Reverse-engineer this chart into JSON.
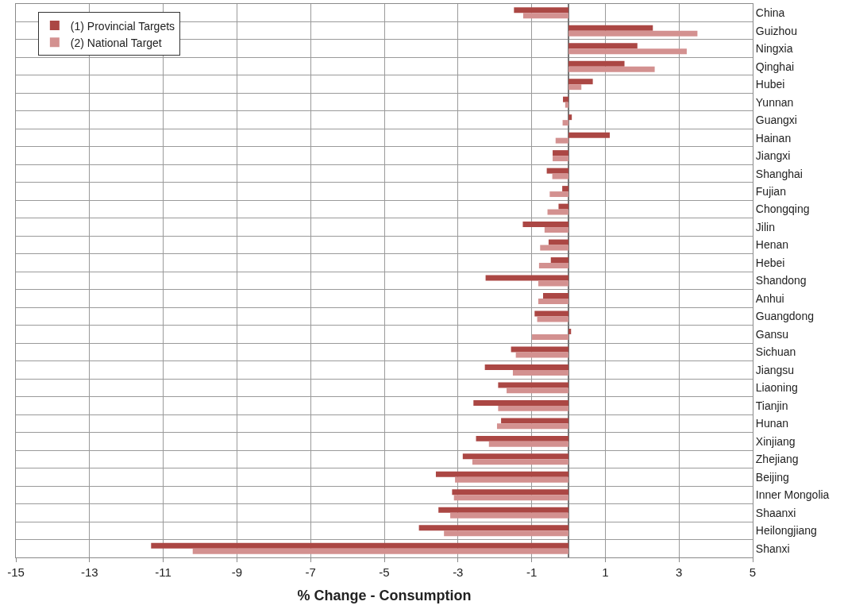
{
  "chart_data": {
    "type": "bar",
    "orientation": "horizontal",
    "xlabel": "% Change - Consumption",
    "categories": [
      "China",
      "Guizhou",
      "Ningxia",
      "Qinghai",
      "Hubei",
      "Yunnan",
      "Guangxi",
      "Hainan",
      "Jiangxi",
      "Shanghai",
      "Fujian",
      "Chongqing",
      "Jilin",
      "Henan",
      "Hebei",
      "Shandong",
      "Anhui",
      "Guangdong",
      "Gansu",
      "Sichuan",
      "Jiangsu",
      "Liaoning",
      "Tianjin",
      "Hunan",
      "Xinjiang",
      "Zhejiang",
      "Beijing",
      "Inner Mongolia",
      "Shaanxi",
      "Heilongjiang",
      "Shanxi"
    ],
    "series": [
      {
        "name": "(1) Provincial Targets",
        "color": "#ab4744",
        "values": [
          -1.48,
          2.29,
          1.87,
          1.52,
          0.66,
          -0.15,
          0.09,
          1.12,
          -0.43,
          -0.59,
          -0.17,
          -0.27,
          -1.24,
          -0.54,
          -0.48,
          -2.25,
          -0.69,
          -0.92,
          0.07,
          -1.56,
          -2.27,
          -1.91,
          -2.58,
          -1.83,
          -2.51,
          -2.87,
          -3.6,
          -3.16,
          -3.53,
          -4.06,
          -11.33
        ]
      },
      {
        "name": "(2) National Target",
        "color": "#d39190",
        "values": [
          -1.23,
          3.5,
          3.21,
          2.34,
          0.35,
          -0.09,
          -0.16,
          -0.35,
          -0.43,
          -0.44,
          -0.51,
          -0.57,
          -0.65,
          -0.77,
          -0.8,
          -0.82,
          -0.82,
          -0.85,
          -0.99,
          -1.43,
          -1.51,
          -1.68,
          -1.91,
          -1.94,
          -2.16,
          -2.61,
          -3.08,
          -3.11,
          -3.21,
          -3.38,
          -10.2
        ]
      }
    ],
    "xlim": [
      -15,
      5
    ],
    "xticks": [
      -15,
      -13,
      -11,
      -9,
      -7,
      -5,
      -3,
      -1,
      1,
      3,
      5
    ],
    "grid": true,
    "legend": "top left"
  }
}
